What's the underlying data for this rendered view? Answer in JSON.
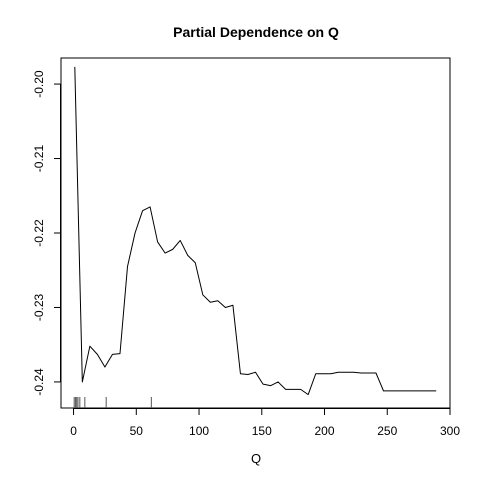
{
  "chart_data": {
    "type": "line",
    "title": "Partial Dependence on Q",
    "xlabel": "Q",
    "ylabel": "",
    "xlim": [
      -10,
      300
    ],
    "ylim": [
      -0.2435,
      -0.1965
    ],
    "x_ticks": [
      0,
      50,
      100,
      150,
      200,
      250,
      300
    ],
    "y_ticks": [
      -0.24,
      -0.23,
      -0.22,
      -0.21,
      -0.2
    ],
    "x_tick_labels": [
      "0",
      "50",
      "100",
      "150",
      "200",
      "250",
      "300"
    ],
    "y_tick_labels": [
      "-0.24",
      "-0.23",
      "-0.22",
      "-0.21",
      "-0.20"
    ],
    "series": [
      {
        "name": "Partial Dependence",
        "x": [
          1,
          7,
          13,
          19,
          25,
          31,
          37,
          43,
          49,
          55,
          61,
          67,
          73,
          79,
          85,
          91,
          97,
          103,
          109,
          115,
          121,
          127,
          133,
          139,
          145,
          151,
          157,
          163,
          169,
          175,
          181,
          187,
          193,
          199,
          205,
          211,
          217,
          223,
          229,
          235,
          241,
          247,
          253,
          259,
          265,
          271,
          277,
          283,
          289
        ],
        "y": [
          -0.1977,
          -0.24,
          -0.2352,
          -0.2363,
          -0.238,
          -0.2363,
          -0.2362,
          -0.2245,
          -0.22,
          -0.217,
          -0.2165,
          -0.2212,
          -0.2227,
          -0.2222,
          -0.221,
          -0.223,
          -0.224,
          -0.2283,
          -0.2293,
          -0.2291,
          -0.23,
          -0.2297,
          -0.2389,
          -0.239,
          -0.2387,
          -0.2403,
          -0.2405,
          -0.24,
          -0.241,
          -0.241,
          -0.241,
          -0.2417,
          -0.2389,
          -0.2389,
          -0.2389,
          -0.2387,
          -0.2387,
          -0.2387,
          -0.2388,
          -0.2388,
          -0.2388,
          -0.2412,
          -0.2412,
          -0.2412,
          -0.2412,
          -0.2412,
          -0.2412,
          -0.2412,
          -0.2412
        ],
        "color": "#000000"
      }
    ],
    "rug_x": [
      0.5,
      1.5,
      2.5,
      3.5,
      5,
      9,
      26,
      62
    ],
    "rug_color": "#555555",
    "grid": false,
    "legend": "none"
  }
}
